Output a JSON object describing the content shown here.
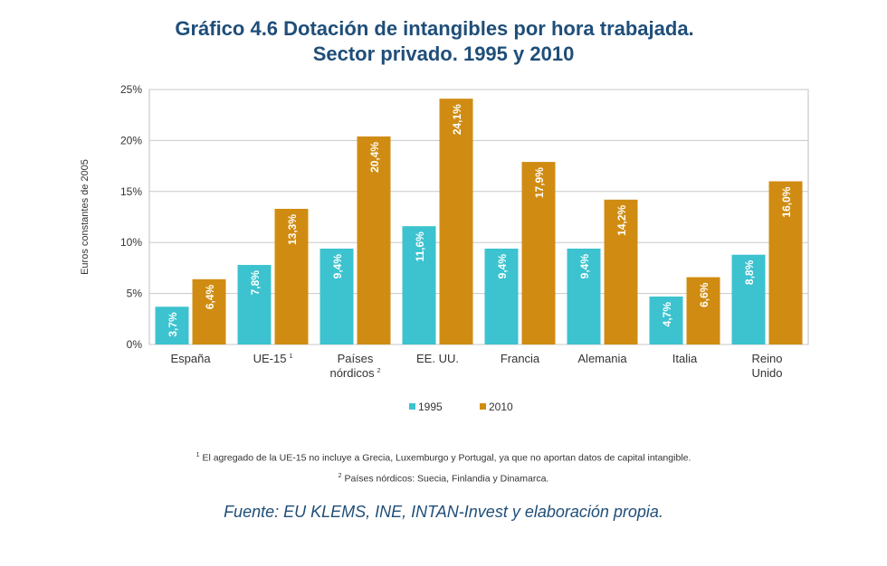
{
  "title": {
    "line1": "Gráfico 4.6  Dotación de intangibles por hora trabajada.",
    "line2": "Sector privado. 1995 y 2010"
  },
  "chart_data": {
    "type": "bar",
    "ylabel": "Euros constantes de 2005",
    "ylim": [
      0,
      25
    ],
    "yticks": [
      0,
      5,
      10,
      15,
      20,
      25
    ],
    "ytick_labels": [
      "0%",
      "5%",
      "10%",
      "15%",
      "20%",
      "25%"
    ],
    "grid": true,
    "legend_position": "bottom",
    "categories": [
      [
        "España"
      ],
      [
        "UE-15",
        "1"
      ],
      [
        "Países",
        "nórdicos",
        "2"
      ],
      [
        "EE. UU."
      ],
      [
        "Francia"
      ],
      [
        "Alemania"
      ],
      [
        "Italia"
      ],
      [
        "Reino",
        "Unido"
      ]
    ],
    "series": [
      {
        "name": "1995",
        "color": "#3cc3cf",
        "values": [
          3.7,
          7.8,
          9.4,
          11.6,
          9.4,
          9.4,
          4.7,
          8.8
        ],
        "labels": [
          "3,7%",
          "7,8%",
          "9,4%",
          "11,6%",
          "9,4%",
          "9,4%",
          "4,7%",
          "8,8%"
        ]
      },
      {
        "name": "2010",
        "color": "#d08c12",
        "values": [
          6.4,
          13.3,
          20.4,
          24.1,
          17.9,
          14.2,
          6.6,
          16.0
        ],
        "labels": [
          "6,4%",
          "13,3%",
          "20,4%",
          "24,1%",
          "17,9%",
          "14,2%",
          "6,6%",
          "16,0%"
        ]
      }
    ]
  },
  "footnotes": {
    "note1_mark": "1",
    "note1": "El agregado de la UE-15 no incluye a Grecia, Luxemburgo y Portugal, ya que no aportan datos de capital intangible.",
    "note2_mark": "2",
    "note2": "Países nórdicos: Suecia, Finlandia y Dinamarca."
  },
  "source": "Fuente: EU KLEMS, INE, INTAN-Invest y elaboración propia."
}
